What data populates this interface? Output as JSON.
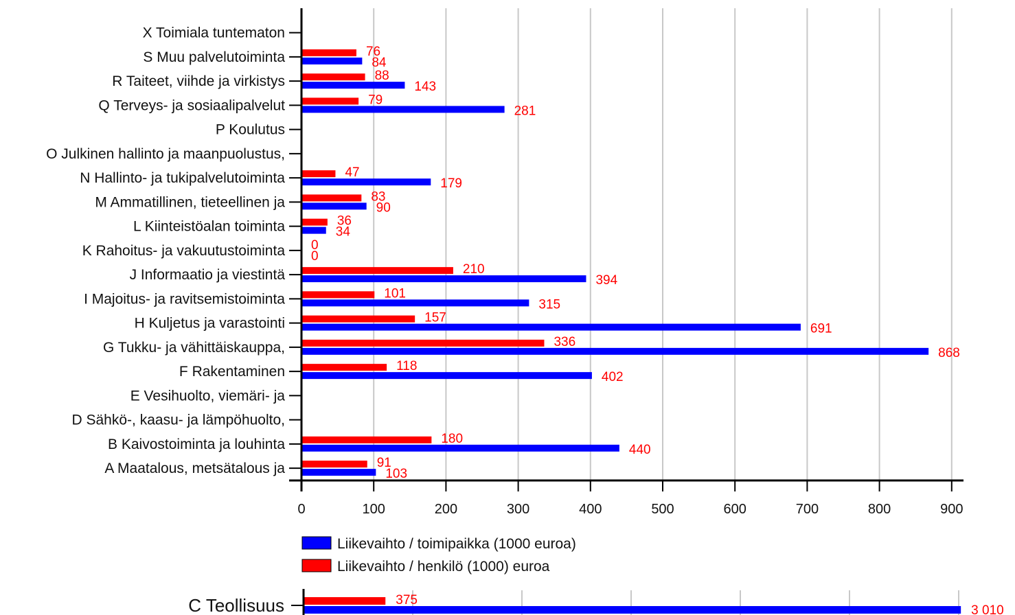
{
  "chart_data": [
    {
      "type": "bar",
      "orientation": "horizontal",
      "categories": [
        "X Toimiala tuntematon",
        "S Muu palvelutoiminta",
        "R Taiteet, viihde ja virkistys",
        "Q Terveys- ja sosiaalipalvelut",
        "P Koulutus",
        "O Julkinen hallinto ja maanpuolustus,",
        "N Hallinto- ja tukipalvelutoiminta",
        "M Ammatillinen, tieteellinen ja",
        "L Kiinteistöalan toiminta",
        "K Rahoitus- ja vakuutustoiminta",
        "J Informaatio ja viestintä",
        "I Majoitus- ja ravitsemistoiminta",
        "H Kuljetus ja varastointi",
        "G Tukku- ja vähittäiskauppa,",
        "F Rakentaminen",
        "E Vesihuolto, viemäri- ja",
        "D Sähkö-, kaasu- ja lämpöhuolto,",
        "B Kaivostoiminta ja louhinta",
        "A Maatalous, metsätalous ja"
      ],
      "series": [
        {
          "name": "Liikevaihto / henkilö (1000) euroa",
          "color": "#ff0000",
          "values": [
            null,
            76,
            88,
            79,
            null,
            null,
            47,
            83,
            36,
            0,
            210,
            101,
            157,
            336,
            118,
            null,
            null,
            180,
            91
          ],
          "labels": [
            "",
            "76",
            "88",
            "79",
            "",
            "",
            "47",
            "83",
            "36",
            "0",
            "210",
            "101",
            "157",
            "336",
            "118",
            "",
            "",
            "180",
            "91"
          ]
        },
        {
          "name": "Liikevaihto / toimipaikka (1000 euroa)",
          "color": "#0000ff",
          "values": [
            null,
            84,
            143,
            281,
            null,
            null,
            179,
            90,
            34,
            0,
            394,
            315,
            691,
            868,
            402,
            null,
            null,
            440,
            103
          ],
          "labels": [
            "",
            "84",
            "143",
            "281",
            "",
            "",
            "179",
            "90",
            "34",
            "0",
            "394",
            "315",
            "691",
            "868",
            "402",
            "",
            "",
            "440",
            "103"
          ]
        }
      ],
      "xlim": [
        0,
        920
      ],
      "xticks": [
        "0",
        "100",
        "200",
        "300",
        "400",
        "500",
        "600",
        "700",
        "800",
        "900"
      ],
      "xtick_values": [
        0,
        100,
        200,
        300,
        400,
        500,
        600,
        700,
        800,
        900
      ],
      "grid": true,
      "legend_position": "bottom-left",
      "legend": [
        {
          "name": "Liikevaihto / toimipaikka (1000 euroa)",
          "color": "#0000ff"
        },
        {
          "name": "Liikevaihto / henkilö (1000) euroa",
          "color": "#ff0000"
        }
      ]
    },
    {
      "type": "bar",
      "orientation": "horizontal",
      "categories": [
        "C Teollisuus"
      ],
      "series": [
        {
          "name": "Liikevaihto / henkilö (1000) euroa",
          "color": "#ff0000",
          "values": [
            375
          ],
          "labels": [
            "375"
          ]
        },
        {
          "name": "Liikevaihto / toimipaikka (1000 euroa)",
          "color": "#0000ff",
          "values": [
            3010
          ],
          "labels": [
            "3 010"
          ]
        }
      ],
      "xlim": [
        0,
        3030
      ],
      "xtick_values": [
        0,
        500,
        1000,
        1500,
        2000,
        2500,
        3000
      ],
      "grid": true
    }
  ]
}
